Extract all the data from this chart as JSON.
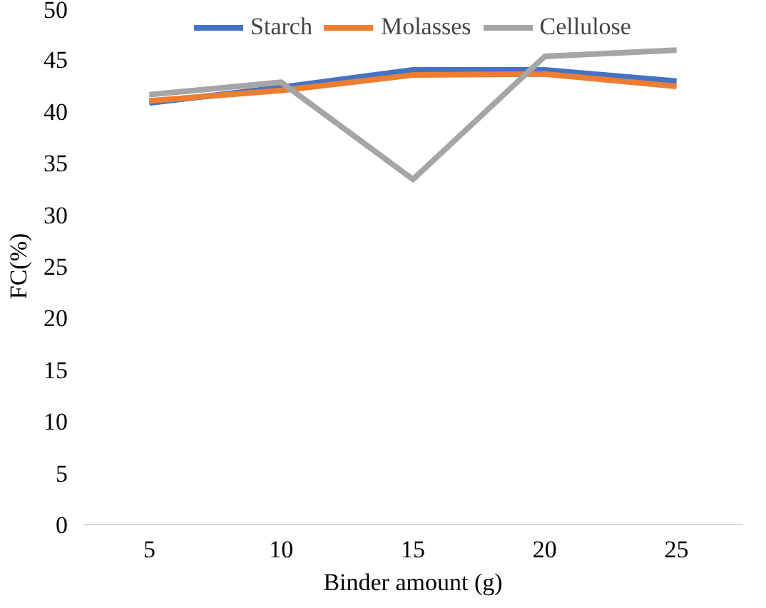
{
  "chart_data": {
    "type": "line",
    "xlabel": "Binder amount (g)",
    "ylabel": "FC(%)",
    "categories": [
      "5",
      "10",
      "15",
      "20",
      "25"
    ],
    "series": [
      {
        "name": "Starch",
        "color": "#4472c4",
        "values": [
          40.8,
          42.3,
          44.0,
          44.0,
          42.9
        ]
      },
      {
        "name": "Molasses",
        "color": "#ed7d31",
        "values": [
          41.0,
          42.0,
          43.5,
          43.6,
          42.4
        ]
      },
      {
        "name": "Cellulose",
        "color": "#a5a5a5",
        "values": [
          41.6,
          42.8,
          33.4,
          45.3,
          45.9
        ]
      }
    ],
    "ylim": [
      0,
      50
    ],
    "yticks": [
      0,
      5,
      10,
      15,
      20,
      25,
      30,
      35,
      40,
      45,
      50
    ],
    "grid": false,
    "legend": "top",
    "marker": "none",
    "line_style": "solid"
  }
}
